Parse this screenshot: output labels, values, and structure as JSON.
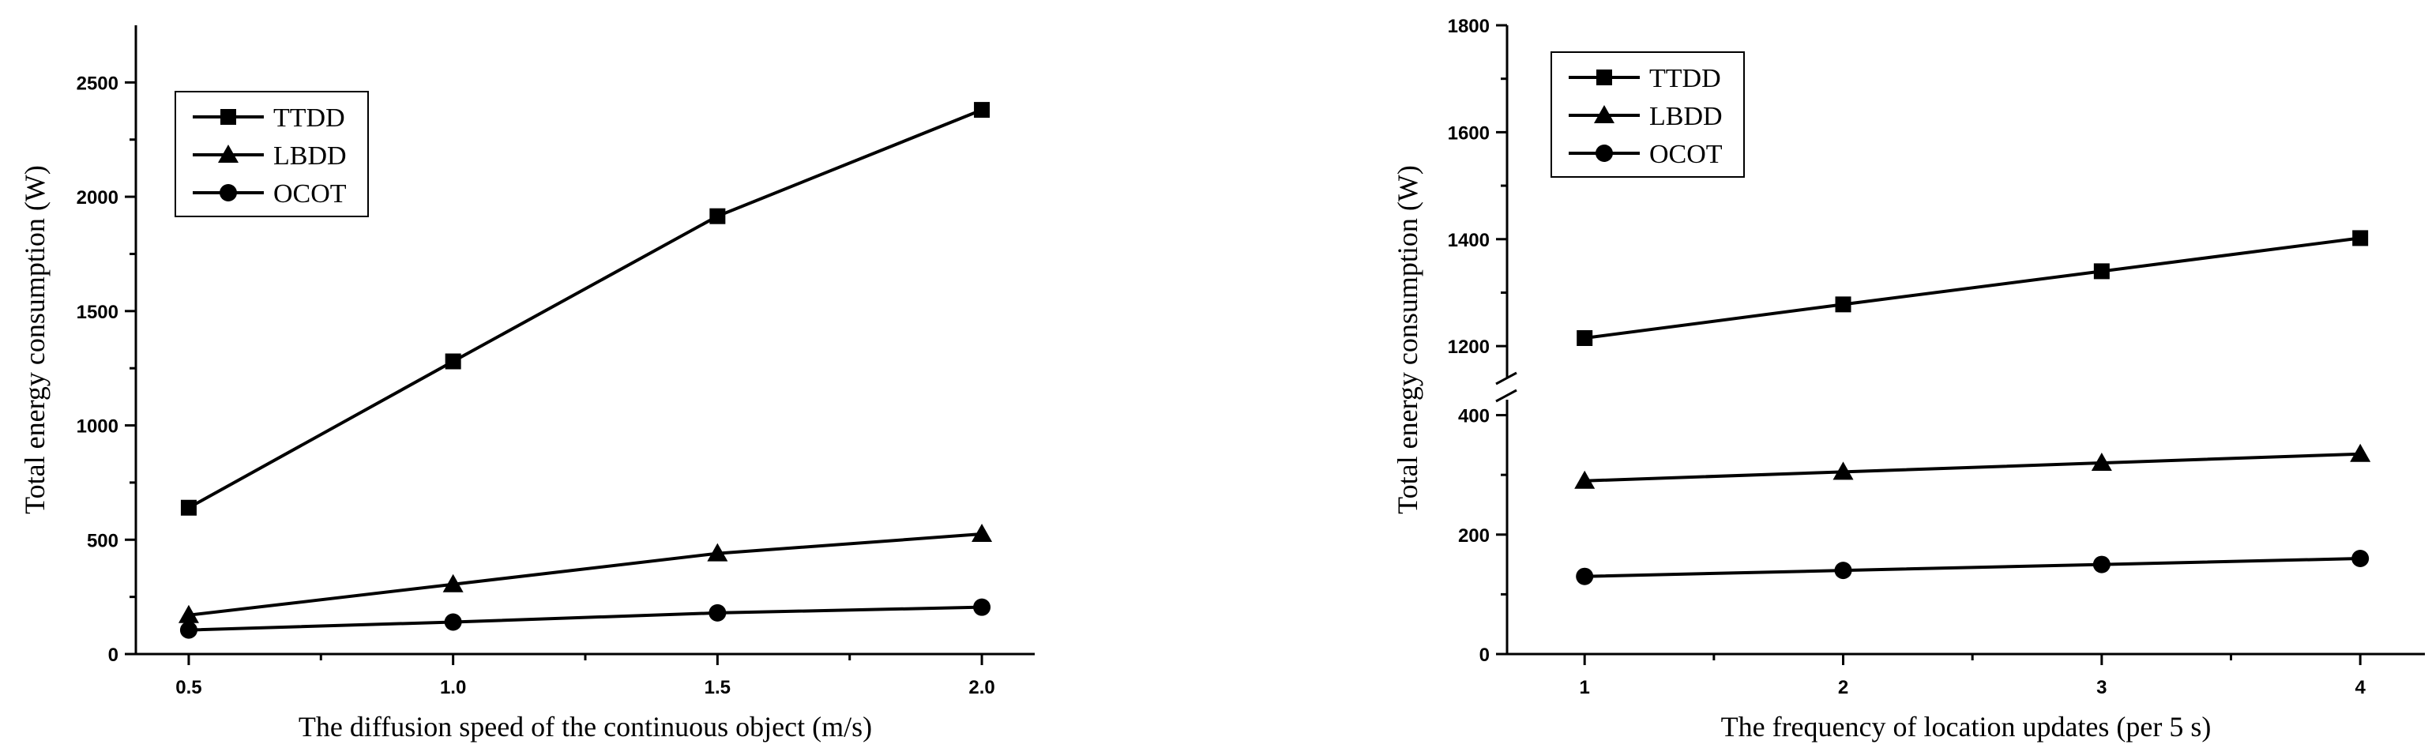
{
  "chart_data": [
    {
      "type": "line",
      "x": [
        0.5,
        1.0,
        1.5,
        2.0
      ],
      "xticks": [
        "0.5",
        "1.0",
        "1.5",
        "2.0"
      ],
      "xlim": [
        0.4,
        2.1
      ],
      "ylim": [
        0,
        2750
      ],
      "yticks": [
        "0",
        "500",
        "1000",
        "1500",
        "2000",
        "2500"
      ],
      "xlabel": "The diffusion speed of the continuous object (m/s)",
      "ylabel": "Total energy consumption (W)",
      "legend_position": "top-left",
      "series": [
        {
          "name": "TTDD",
          "marker": "square",
          "values": [
            640,
            1280,
            1915,
            2380
          ]
        },
        {
          "name": "LBDD",
          "marker": "triangle",
          "values": [
            170,
            305,
            440,
            525
          ]
        },
        {
          "name": "OCOT",
          "marker": "circle",
          "values": [
            105,
            140,
            180,
            205
          ]
        }
      ]
    },
    {
      "type": "line",
      "x": [
        1,
        2,
        3,
        4
      ],
      "xticks": [
        "1",
        "2",
        "3",
        "4"
      ],
      "xlim": [
        0.7,
        4.25
      ],
      "y_axis_break": {
        "lower_range": [
          0,
          400
        ],
        "upper_range": [
          1150,
          1800
        ]
      },
      "yticks_lower": [
        "0",
        "200",
        "400"
      ],
      "yticks_upper": [
        "1200",
        "1400",
        "1600",
        "1800"
      ],
      "xlabel": "The frequency of location updates (per 5 s)",
      "ylabel": "Total energy consumption (W)",
      "legend_position": "top-left",
      "series": [
        {
          "name": "TTDD",
          "marker": "square",
          "values": [
            1215,
            1278,
            1340,
            1402
          ]
        },
        {
          "name": "LBDD",
          "marker": "triangle",
          "values": [
            290,
            305,
            320,
            335
          ]
        },
        {
          "name": "OCOT",
          "marker": "circle",
          "values": [
            130,
            140,
            150,
            160
          ]
        }
      ]
    }
  ]
}
